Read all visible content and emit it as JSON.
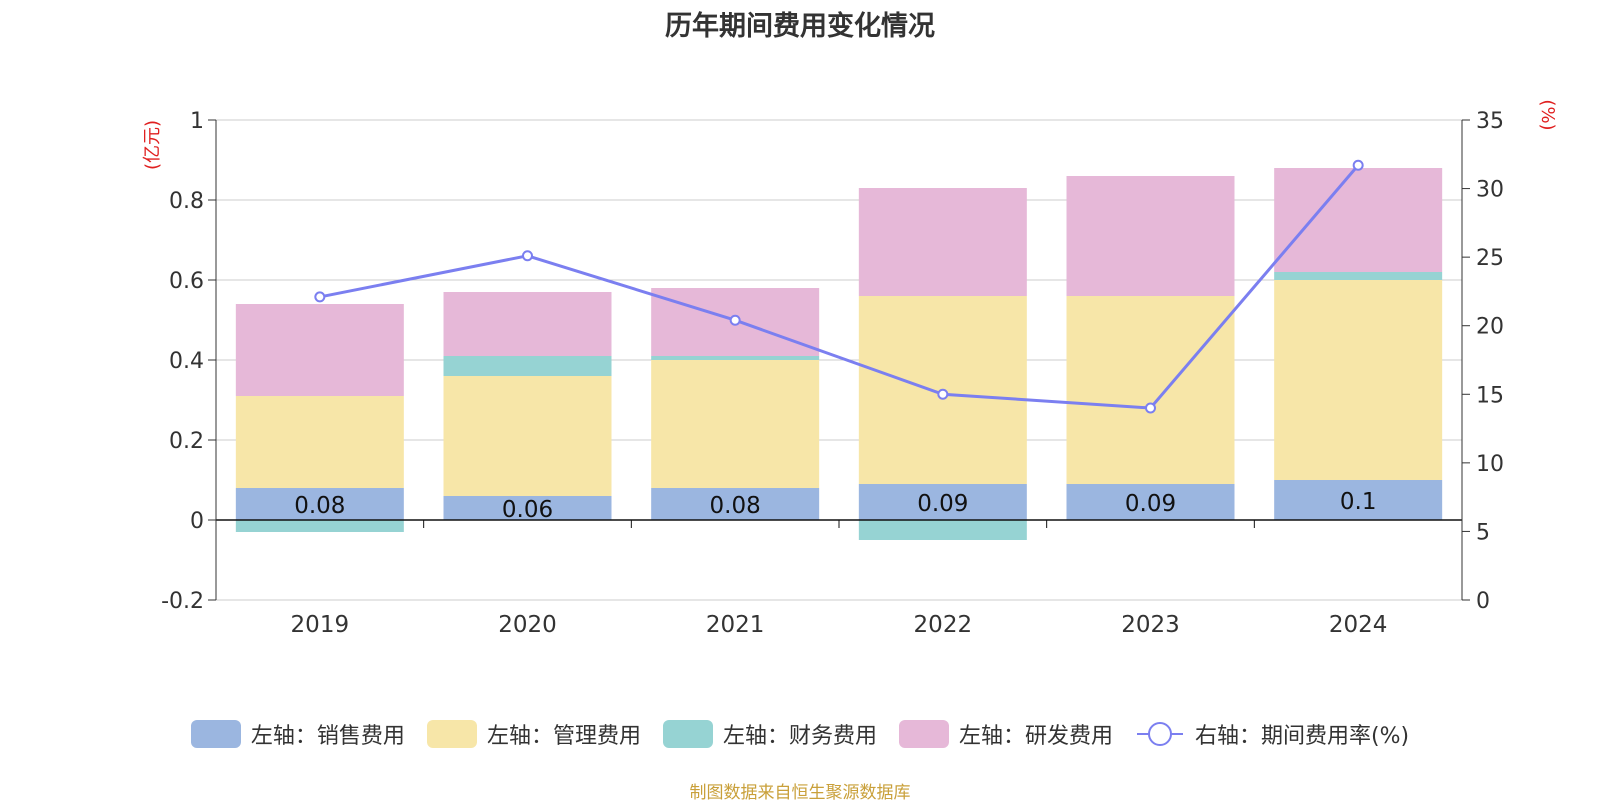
{
  "chart_data": {
    "type": "bar",
    "title": "历年期间费用变化情况",
    "categories": [
      "2019",
      "2020",
      "2021",
      "2022",
      "2023",
      "2024"
    ],
    "left_axis": {
      "unit_label": "(亿元)",
      "ylim": [
        -0.2,
        1
      ],
      "ticks": [
        -0.2,
        0,
        0.2,
        0.4,
        0.6,
        0.8,
        1
      ]
    },
    "right_axis": {
      "unit_label": "(%)",
      "ylim": [
        0,
        35
      ],
      "ticks": [
        0,
        5,
        10,
        15,
        20,
        25,
        30,
        35
      ]
    },
    "series": [
      {
        "name": "左轴：销售费用",
        "type": "bar",
        "axis": "left",
        "color": "#9bb6e0",
        "values": [
          0.08,
          0.06,
          0.08,
          0.09,
          0.09,
          0.1
        ],
        "labels": [
          "0.08",
          "0.06",
          "0.08",
          "0.09",
          "0.09",
          "0.1"
        ]
      },
      {
        "name": "左轴：管理费用",
        "type": "bar",
        "axis": "left",
        "color": "#f7e6a8",
        "values": [
          0.23,
          0.3,
          0.32,
          0.47,
          0.47,
          0.5
        ]
      },
      {
        "name": "左轴：财务费用",
        "type": "bar",
        "axis": "left",
        "color": "#96d3d3",
        "values": [
          -0.03,
          0.05,
          0.01,
          -0.05,
          0.0,
          0.02
        ]
      },
      {
        "name": "左轴：研发费用",
        "type": "bar",
        "axis": "left",
        "color": "#e6b8d8",
        "values": [
          0.23,
          0.16,
          0.17,
          0.27,
          0.3,
          0.26
        ]
      },
      {
        "name": "右轴：期间费用率(%)",
        "type": "line",
        "axis": "right",
        "color": "#7b7ff0",
        "values": [
          22.1,
          25.1,
          20.4,
          15.0,
          14.0,
          31.7
        ]
      }
    ],
    "grid": true,
    "legend_position": "bottom"
  },
  "source": "制图数据来自恒生聚源数据库"
}
